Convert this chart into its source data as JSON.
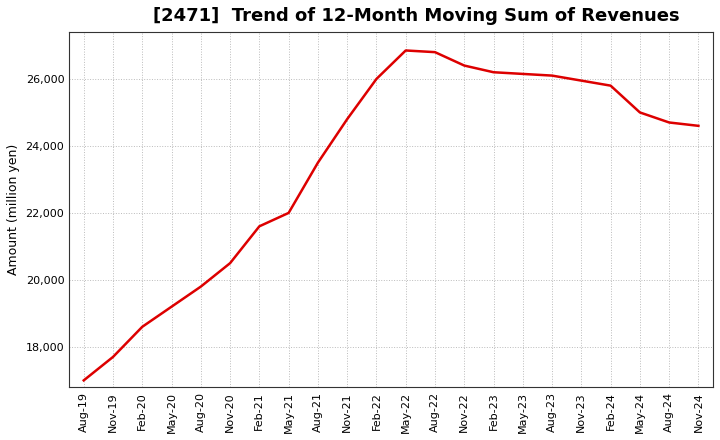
{
  "title": "[2471]  Trend of 12-Month Moving Sum of Revenues",
  "ylabel": "Amount (million yen)",
  "line_color": "#dd0000",
  "background_color": "#ffffff",
  "plot_bg_color": "#ffffff",
  "grid_color": "#bbbbbb",
  "x_labels": [
    "Aug-19",
    "Nov-19",
    "Feb-20",
    "May-20",
    "Aug-20",
    "Nov-20",
    "Feb-21",
    "May-21",
    "Aug-21",
    "Nov-21",
    "Feb-22",
    "May-22",
    "Aug-22",
    "Nov-22",
    "Feb-23",
    "May-23",
    "Aug-23",
    "Nov-23",
    "Feb-24",
    "May-24",
    "Aug-24",
    "Nov-24"
  ],
  "values": [
    17000,
    17700,
    18600,
    19200,
    19800,
    20500,
    21600,
    22000,
    23500,
    24800,
    26000,
    26850,
    26800,
    26400,
    26200,
    26150,
    26100,
    25950,
    25800,
    25000,
    24700,
    24600
  ],
  "ylim": [
    16800,
    27400
  ],
  "yticks": [
    18000,
    20000,
    22000,
    24000,
    26000
  ],
  "title_fontsize": 13,
  "label_fontsize": 9,
  "tick_fontsize": 8
}
